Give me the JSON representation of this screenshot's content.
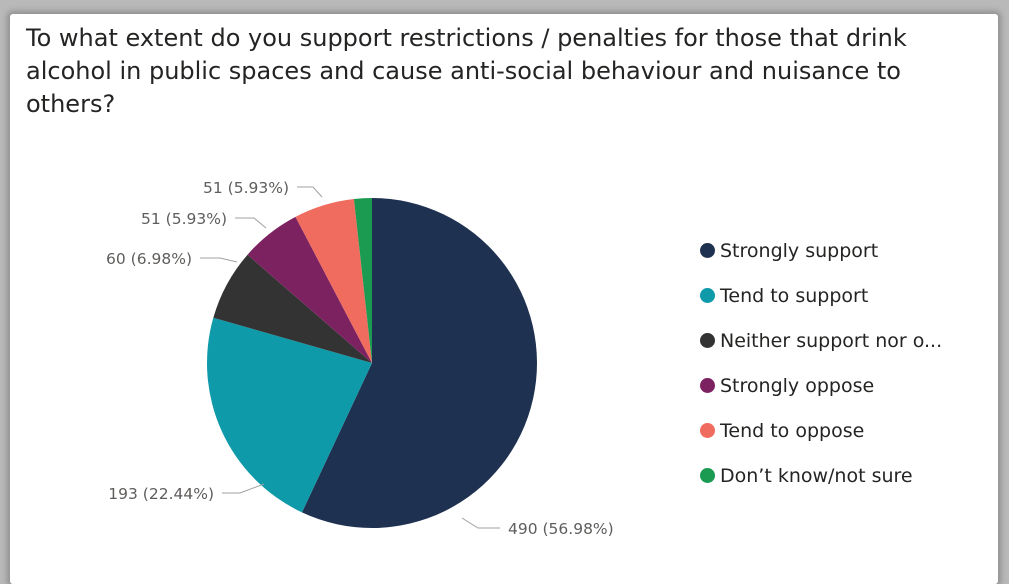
{
  "chart_data": {
    "type": "pie",
    "title": "To what extent do you support restrictions / penalties for those that drink alcohol in public spaces and cause anti-social behaviour and nuisance to others?",
    "legend_position": "right",
    "slices": [
      {
        "name": "Strongly support",
        "legend_label": "Strongly support",
        "value": 490,
        "label": "490 (56.98%)",
        "color": "#1f3150"
      },
      {
        "name": "Tend to support",
        "legend_label": "Tend to support",
        "value": 193,
        "label": "193 (22.44%)",
        "color": "#0f9aaa"
      },
      {
        "name": "Neither support nor oppose",
        "legend_label": "Neither support nor o...",
        "value": 60,
        "label": "60 (6.98%)",
        "color": "#333333"
      },
      {
        "name": "Strongly oppose",
        "legend_label": "Strongly oppose",
        "value": 51,
        "label": "51 (5.93%)",
        "color": "#7d2260"
      },
      {
        "name": "Tend to oppose",
        "legend_label": "Tend to oppose",
        "value": 51,
        "label": "51 (5.93%)",
        "color": "#ef6c5e"
      },
      {
        "name": "Don't know/not sure",
        "legend_label": "Don’t know/not sure",
        "value": 15,
        "label": "",
        "color": "#1b9a52"
      }
    ]
  }
}
